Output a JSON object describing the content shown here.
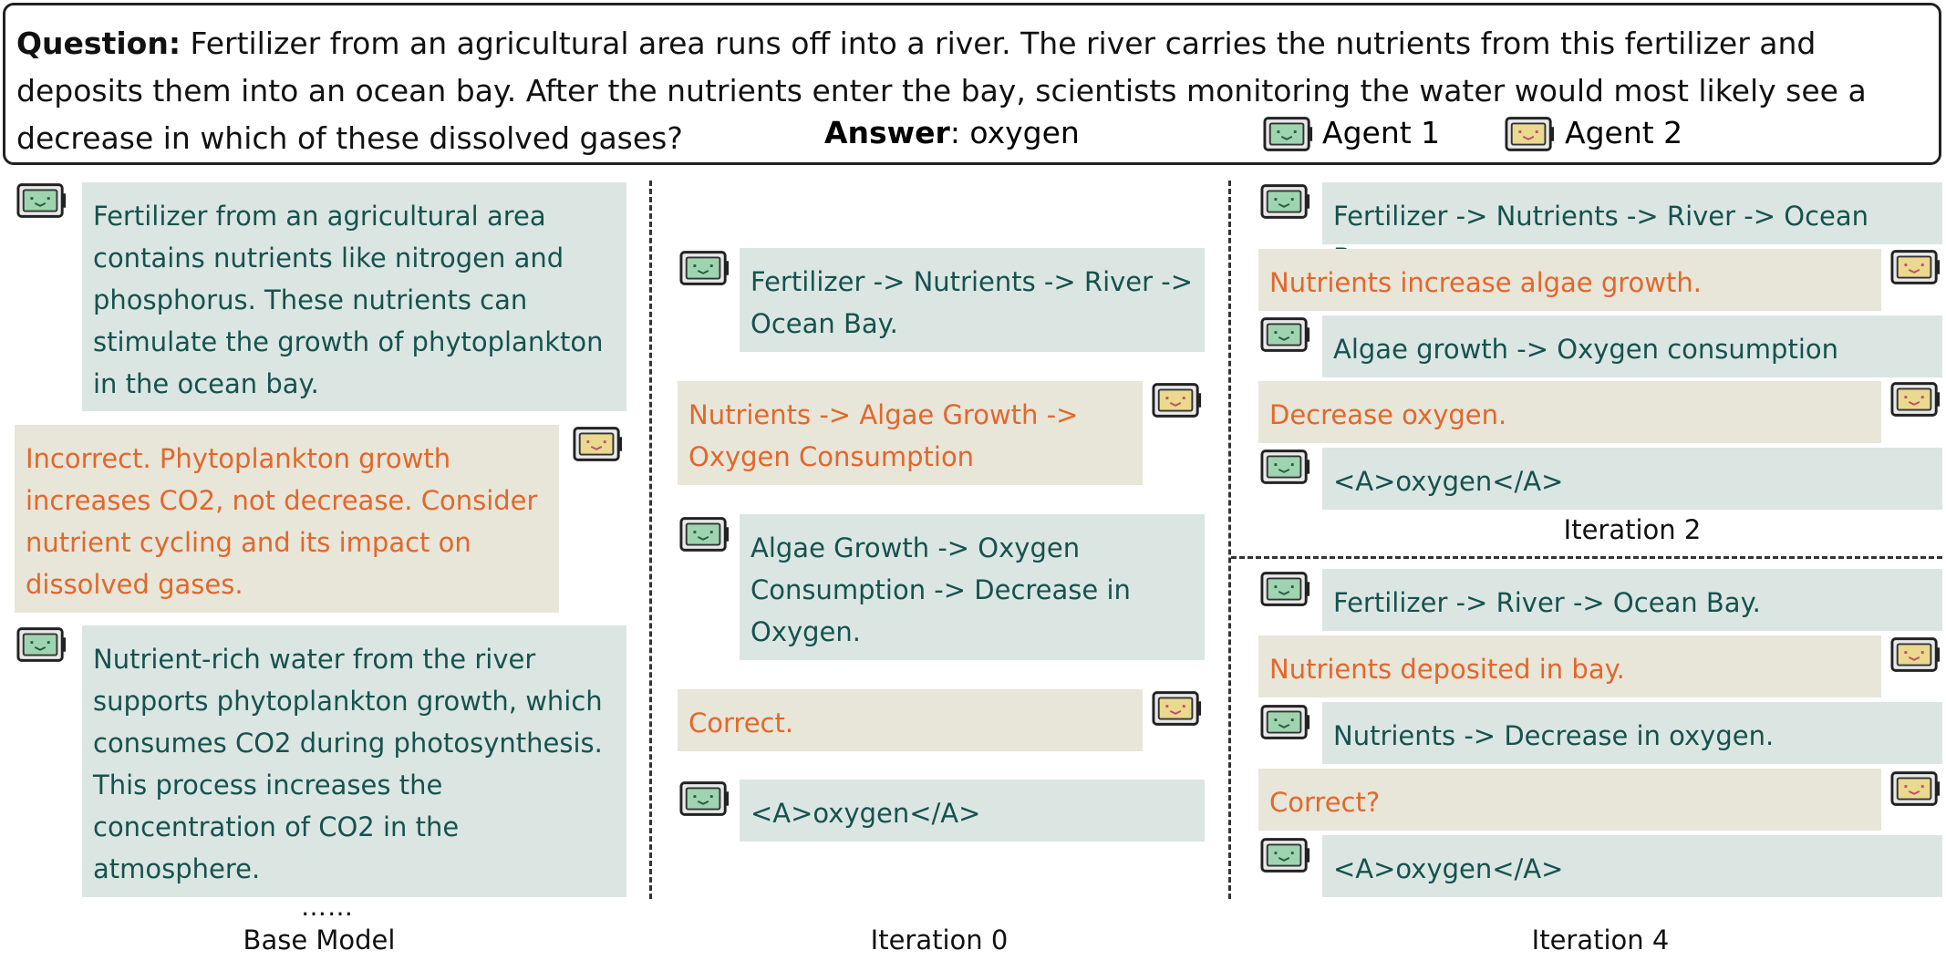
{
  "header": {
    "question_label": "Question:",
    "question_text": "Fertilizer from an agricultural area runs off into a river. The river carries the nutrients from this fertilizer and deposits them into an ocean bay. After the nutrients enter the bay, scientists monitoring the water would most likely see a decrease in which of these dissolved gases?",
    "answer_label": "Answer",
    "answer_text": ": oxygen",
    "legend": [
      {
        "label": "Agent 1",
        "icon": "agent1-icon",
        "color": "#9fd4b0"
      },
      {
        "label": "Agent 2",
        "icon": "agent2-icon",
        "color": "#ead98f"
      }
    ]
  },
  "colors": {
    "agent1_bubble": "#dbe6e2",
    "agent1_text": "#16524f",
    "agent2_bubble": "#e8e6d9",
    "agent2_text": "#e2672b"
  },
  "base_model": {
    "title": "Base Model",
    "ellipsis": "……",
    "messages": [
      {
        "agent": 1,
        "text": "Fertilizer from an agricultural area contains nutrients like nitrogen and phosphorus. These nutrients can stimulate the growth of phytoplankton in the ocean bay."
      },
      {
        "agent": 2,
        "text": "Incorrect. Phytoplankton growth increases CO2, not decrease. Consider nutrient cycling and its impact on dissolved gases."
      },
      {
        "agent": 1,
        "text": "Nutrient-rich water from the river supports phytoplankton growth, which consumes CO2 during photosynthesis. This process increases the concentration of CO2 in the atmosphere."
      }
    ]
  },
  "iteration0": {
    "title": "Iteration 0",
    "messages": [
      {
        "agent": 1,
        "text": "Fertilizer -> Nutrients -> River -> Ocean Bay."
      },
      {
        "agent": 2,
        "text": "Nutrients -> Algae Growth -> Oxygen Consumption"
      },
      {
        "agent": 1,
        "text": "Algae Growth -> Oxygen Consumption -> Decrease in Oxygen."
      },
      {
        "agent": 2,
        "text": "Correct."
      },
      {
        "agent": 1,
        "text": "<A>oxygen</A>"
      }
    ]
  },
  "iteration2": {
    "title": "Iteration 2",
    "messages": [
      {
        "agent": 1,
        "text": "Fertilizer -> Nutrients -> River -> Ocean Bay."
      },
      {
        "agent": 2,
        "text": "Nutrients increase algae growth."
      },
      {
        "agent": 1,
        "text": "Algae growth -> Oxygen consumption"
      },
      {
        "agent": 2,
        "text": "Decrease oxygen."
      },
      {
        "agent": 1,
        "text": "<A>oxygen</A>"
      }
    ]
  },
  "iteration4": {
    "title": "Iteration 4",
    "messages": [
      {
        "agent": 1,
        "text": "Fertilizer -> River -> Ocean Bay."
      },
      {
        "agent": 2,
        "text": "Nutrients deposited in bay."
      },
      {
        "agent": 1,
        "text": "Nutrients -> Decrease in oxygen."
      },
      {
        "agent": 2,
        "text": "Correct?"
      },
      {
        "agent": 1,
        "text": "<A>oxygen</A>"
      }
    ]
  }
}
